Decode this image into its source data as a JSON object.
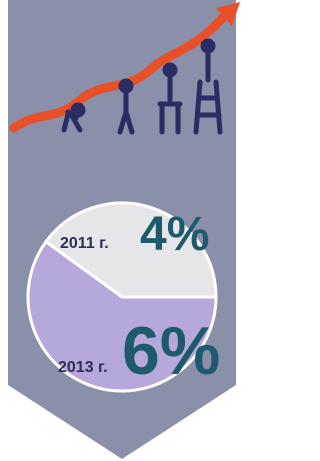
{
  "chart_data": {
    "type": "pie",
    "categories": [
      "2011 г.",
      "2013 г."
    ],
    "values": [
      4,
      6
    ],
    "value_labels": [
      "4%",
      "6%"
    ],
    "colors": [
      "#e6e6e8",
      "#b6a8da"
    ]
  }
}
